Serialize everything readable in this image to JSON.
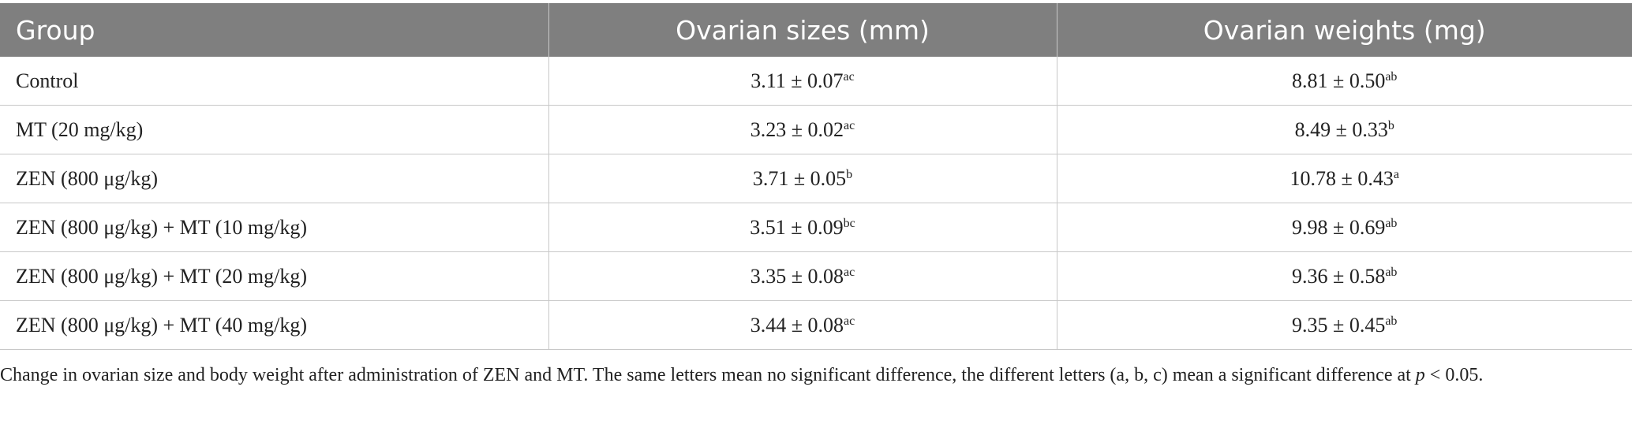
{
  "table": {
    "header": [
      "Group",
      "Ovarian sizes (mm)",
      "Ovarian weights (mg)"
    ],
    "rows": [
      {
        "group": "Control",
        "size": "3.11 ± 0.07",
        "size_sup": "ac",
        "weight": "8.81 ± 0.50",
        "weight_sup": "ab"
      },
      {
        "group": "MT (20 mg/kg)",
        "size": "3.23 ± 0.02",
        "size_sup": "ac",
        "weight": "8.49 ± 0.33",
        "weight_sup": "b"
      },
      {
        "group": "ZEN (800 μg/kg)",
        "size": "3.71 ± 0.05",
        "size_sup": "b",
        "weight": "10.78 ± 0.43",
        "weight_sup": "a"
      },
      {
        "group": "ZEN (800 μg/kg) + MT (10 mg/kg)",
        "size": "3.51 ± 0.09",
        "size_sup": "bc",
        "weight": "9.98 ± 0.69",
        "weight_sup": "ab"
      },
      {
        "group": "ZEN (800 μg/kg) + MT (20 mg/kg)",
        "size": "3.35 ± 0.08",
        "size_sup": "ac",
        "weight": "9.36 ± 0.58",
        "weight_sup": "ab"
      },
      {
        "group": "ZEN (800 μg/kg) + MT (40 mg/kg)",
        "size": "3.44 ± 0.08",
        "size_sup": "ac",
        "weight": "9.35 ± 0.45",
        "weight_sup": "ab"
      }
    ]
  },
  "caption": {
    "text": "Change in ovarian size and body weight after administration of ZEN and MT. The same letters mean no significant difference, the different letters (a, b, c) mean a significant difference at",
    "italic": "p",
    "end": "< 0.05."
  }
}
